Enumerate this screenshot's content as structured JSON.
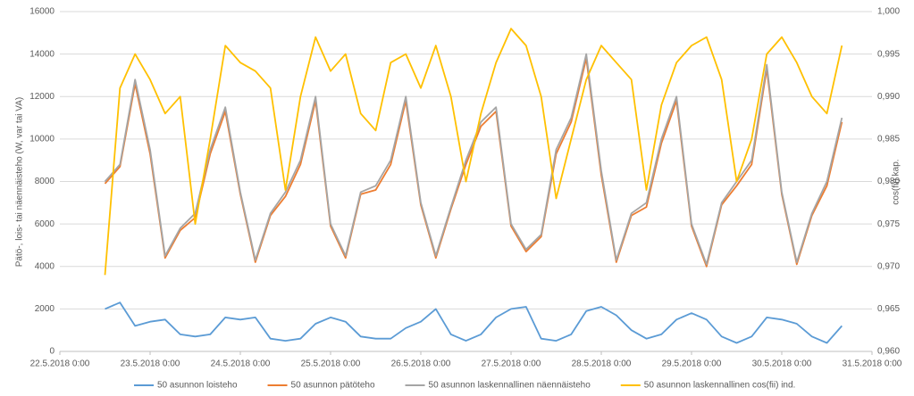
{
  "chart_data": {
    "type": "line",
    "ylabel": "Pätö-, lois- tai näennäisteho (W, var tai VA)",
    "y2label": "cos(fii) kap.",
    "xlim": [
      "22.5.2018 0:00",
      "31.5.2018 0:00"
    ],
    "xticks": [
      "22.5.2018 0:00",
      "23.5.2018 0:00",
      "24.5.2018 0:00",
      "25.5.2018 0:00",
      "26.5.2018 0:00",
      "27.5.2018 0:00",
      "28.5.2018 0:00",
      "29.5.2018 0:00",
      "30.5.2018 0:00",
      "31.5.2018 0:00"
    ],
    "ylim": [
      0,
      16000
    ],
    "yticks": [
      0,
      2000,
      4000,
      6000,
      8000,
      10000,
      12000,
      14000,
      16000
    ],
    "y2lim": [
      0.96,
      1.0
    ],
    "y2ticks": [
      {
        "value": 0.96,
        "label": "0,960"
      },
      {
        "value": 0.965,
        "label": "0,965"
      },
      {
        "value": 0.97,
        "label": "0,970"
      },
      {
        "value": 0.975,
        "label": "0,975"
      },
      {
        "value": 0.98,
        "label": "0,980"
      },
      {
        "value": 0.985,
        "label": "0,985"
      },
      {
        "value": 0.99,
        "label": "0,990"
      },
      {
        "value": 0.995,
        "label": "0,995"
      },
      {
        "value": 1.0,
        "label": "1,000"
      }
    ],
    "grid": true,
    "x": [
      "22.5.2018 12:00",
      "22.5.2018 16:00",
      "22.5.2018 20:00",
      "23.5.2018 0:00",
      "23.5.2018 4:00",
      "23.5.2018 8:00",
      "23.5.2018 12:00",
      "23.5.2018 16:00",
      "23.5.2018 20:00",
      "24.5.2018 0:00",
      "24.5.2018 4:00",
      "24.5.2018 8:00",
      "24.5.2018 12:00",
      "24.5.2018 16:00",
      "24.5.2018 20:00",
      "25.5.2018 0:00",
      "25.5.2018 4:00",
      "25.5.2018 8:00",
      "25.5.2018 12:00",
      "25.5.2018 16:00",
      "25.5.2018 20:00",
      "26.5.2018 0:00",
      "26.5.2018 4:00",
      "26.5.2018 8:00",
      "26.5.2018 12:00",
      "26.5.2018 16:00",
      "26.5.2018 20:00",
      "27.5.2018 0:00",
      "27.5.2018 4:00",
      "27.5.2018 8:00",
      "27.5.2018 12:00",
      "27.5.2018 16:00",
      "27.5.2018 20:00",
      "28.5.2018 0:00",
      "28.5.2018 4:00",
      "28.5.2018 8:00",
      "28.5.2018 12:00",
      "28.5.2018 16:00",
      "28.5.2018 20:00",
      "29.5.2018 0:00",
      "29.5.2018 4:00",
      "29.5.2018 8:00",
      "29.5.2018 12:00",
      "29.5.2018 16:00",
      "29.5.2018 20:00",
      "30.5.2018 0:00",
      "30.5.2018 4:00",
      "30.5.2018 8:00",
      "30.5.2018 12:00",
      "30.5.2018 16:00"
    ],
    "series": [
      {
        "name": "50 asunnon loisteho",
        "color": "#5b9bd5",
        "values": [
          2000,
          2300,
          1200,
          1400,
          1500,
          800,
          700,
          800,
          1600,
          1500,
          1600,
          600,
          500,
          600,
          1300,
          1600,
          1400,
          700,
          600,
          600,
          1100,
          1400,
          2000,
          800,
          500,
          800,
          1600,
          2000,
          2100,
          600,
          500,
          800,
          1900,
          2100,
          1700,
          1000,
          600,
          800,
          1500,
          1800,
          1500,
          700,
          400,
          700,
          1600,
          1500,
          1300,
          700,
          400,
          1200
        ]
      },
      {
        "name": "50 asunnon pätöteho",
        "color": "#ed7d31",
        "values": [
          7900,
          8700,
          12600,
          9300,
          4400,
          5700,
          6300,
          9300,
          11300,
          7400,
          4200,
          6400,
          7300,
          8800,
          11800,
          5900,
          4400,
          7400,
          7600,
          8800,
          11800,
          6900,
          4400,
          6700,
          8800,
          10600,
          11300,
          5900,
          4700,
          5400,
          9300,
          10800,
          13800,
          8300,
          4200,
          6400,
          6800,
          9800,
          11800,
          5900,
          4000,
          6900,
          7800,
          8800,
          13300,
          7400,
          4100,
          6400,
          7800,
          10800
        ]
      },
      {
        "name": "50 asunnon laskennallinen näennäisteho",
        "color": "#a5a5a5",
        "values": [
          8000,
          8800,
          12800,
          9500,
          4500,
          5800,
          6500,
          9500,
          11500,
          7500,
          4300,
          6500,
          7500,
          9000,
          12000,
          6000,
          4500,
          7500,
          7800,
          9000,
          12000,
          7000,
          4500,
          6800,
          9000,
          10800,
          11500,
          6000,
          4800,
          5500,
          9500,
          11000,
          14000,
          8500,
          4300,
          6500,
          7000,
          10000,
          12000,
          6000,
          4100,
          7000,
          8000,
          9000,
          13500,
          7500,
          4200,
          6500,
          8000,
          11000
        ]
      },
      {
        "name": "50 asunnon laskennallinen cos(fii) ind.",
        "color": "#ffc000",
        "axis": "y2",
        "values": [
          0.969,
          0.991,
          0.995,
          0.992,
          0.988,
          0.99,
          0.975,
          0.985,
          0.996,
          0.994,
          0.993,
          0.991,
          0.979,
          0.99,
          0.997,
          0.993,
          0.995,
          0.988,
          0.986,
          0.994,
          0.995,
          0.991,
          0.996,
          0.99,
          0.98,
          0.988,
          0.994,
          0.998,
          0.996,
          0.99,
          0.978,
          0.985,
          0.992,
          0.996,
          0.994,
          0.992,
          0.979,
          0.989,
          0.994,
          0.996,
          0.997,
          0.992,
          0.98,
          0.985,
          0.995,
          0.997,
          0.994,
          0.99,
          0.988,
          0.996
        ]
      }
    ]
  }
}
